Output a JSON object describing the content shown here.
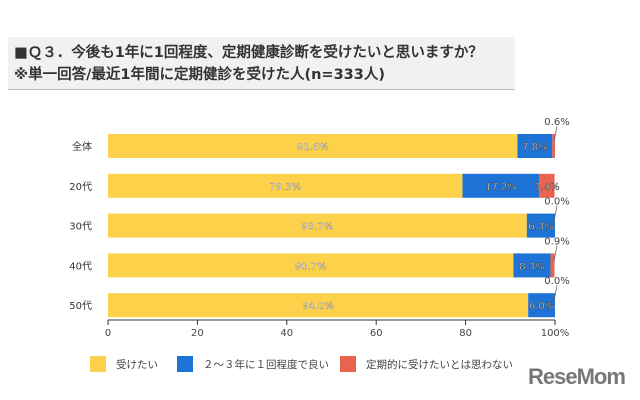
{
  "title": "■Ｑ３．今後も1年に1回程度、定期健康診断を受けたいと思いますか？",
  "subtitle": "※単一回答/最近1年間に定期健診を受けた人(n=333人)",
  "logo": "ReseMom",
  "chart_data": {
    "type": "bar",
    "orientation": "horizontal-stacked",
    "categories": [
      "全体",
      "20代",
      "30代",
      "40代",
      "50代"
    ],
    "series": [
      {
        "name": "受けたい",
        "color": "#fdd14a",
        "values": [
          91.6,
          79.3,
          93.7,
          90.7,
          94.0
        ]
      },
      {
        "name": "２～３年に１回程度で良い",
        "color": "#1e73d6",
        "values": [
          7.8,
          17.2,
          6.3,
          8.3,
          6.0
        ]
      },
      {
        "name": "定期的に受けたいとは思わない",
        "color": "#e8644f",
        "values": [
          0.6,
          3.4,
          0.0,
          0.9,
          0.0
        ]
      }
    ],
    "xlim": [
      0,
      100
    ],
    "xticks": [
      "0",
      "20",
      "40",
      "60",
      "80",
      "100%"
    ],
    "legend": "bottom",
    "grid": false
  }
}
